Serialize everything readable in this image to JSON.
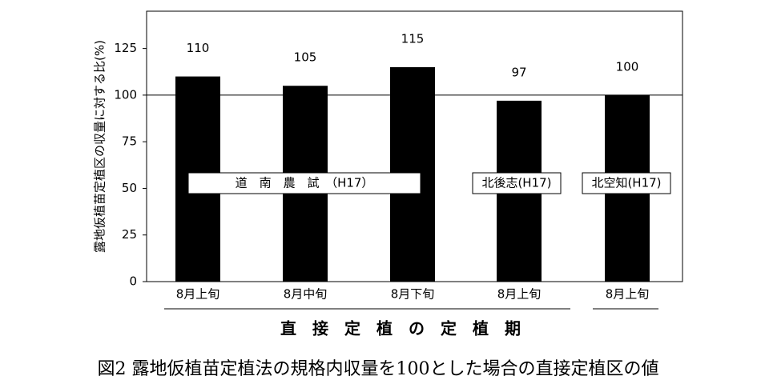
{
  "chart_data": {
    "type": "bar",
    "caption": "図2 露地仮植苗定植法の規格内収量を100とした場合の直接定植区の値",
    "y_label": "露地仮植苗定植区の収量に対する比(%)",
    "x_label": "直　接　定　植　の　定　植　期",
    "categories": [
      "8月上旬",
      "8月中旬",
      "8月下旬",
      "8月上旬",
      "8月上旬"
    ],
    "values": [
      110,
      105,
      115,
      97,
      100
    ],
    "color": "#000000",
    "ylim": [
      0,
      145
    ],
    "yticks": [
      0,
      25,
      50,
      75,
      100,
      125
    ],
    "reference_line": 100,
    "annotations": [
      "道　南　農　試　（H17）",
      "北後志(H17)",
      "北空知(H17)"
    ]
  }
}
